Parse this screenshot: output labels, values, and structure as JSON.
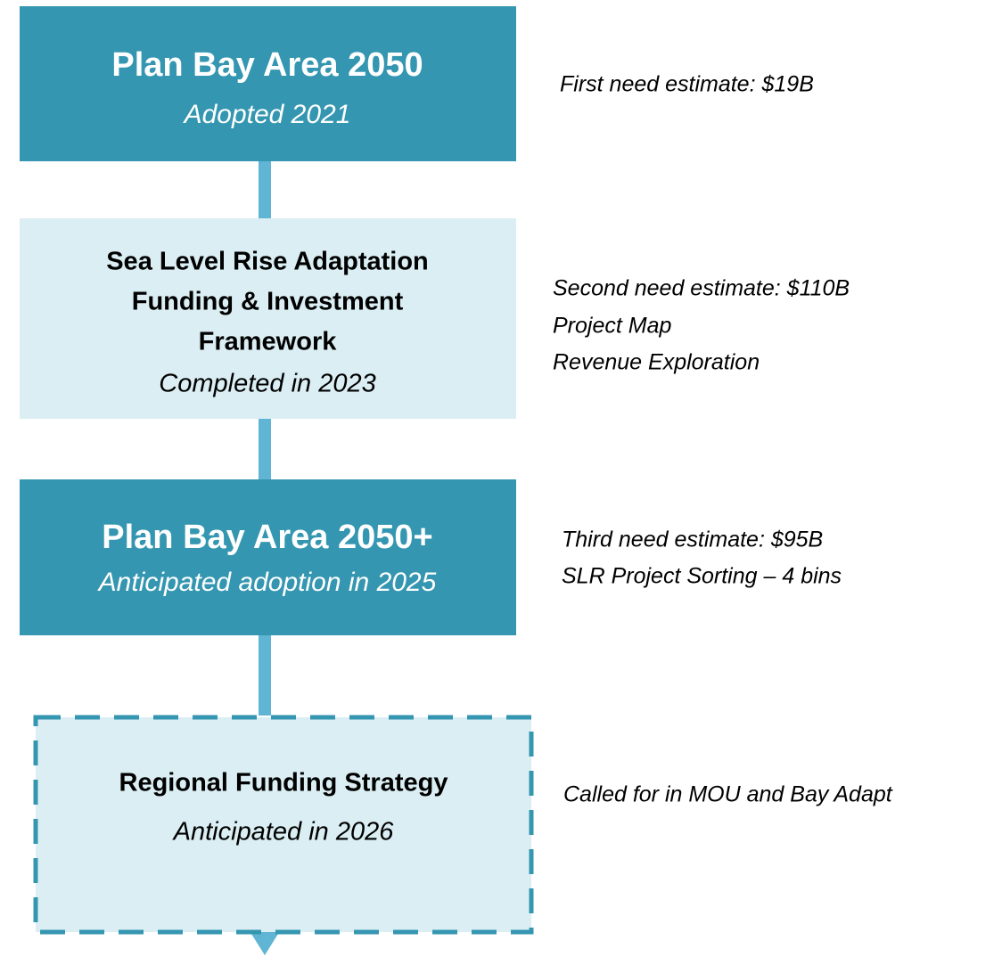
{
  "nodes": [
    {
      "title": [
        "Plan Bay Area 2050"
      ],
      "subtitle": "Adopted 2021",
      "notes": [
        "First need estimate: $19B"
      ]
    },
    {
      "title": [
        "Sea Level Rise Adaptation",
        "Funding & Investment",
        "Framework"
      ],
      "subtitle": "Completed in 2023",
      "notes": [
        "Second need estimate: $110B",
        "Project Map",
        "Revenue Exploration"
      ]
    },
    {
      "title": [
        "Plan Bay Area 2050+"
      ],
      "subtitle": "Anticipated adoption in 2025",
      "notes": [
        "Third need estimate: $95B",
        "SLR Project Sorting – 4 bins"
      ]
    },
    {
      "title": [
        "Regional Funding Strategy"
      ],
      "subtitle": "Anticipated in 2026",
      "notes": [
        "Called for in MOU and Bay Adapt"
      ]
    }
  ]
}
